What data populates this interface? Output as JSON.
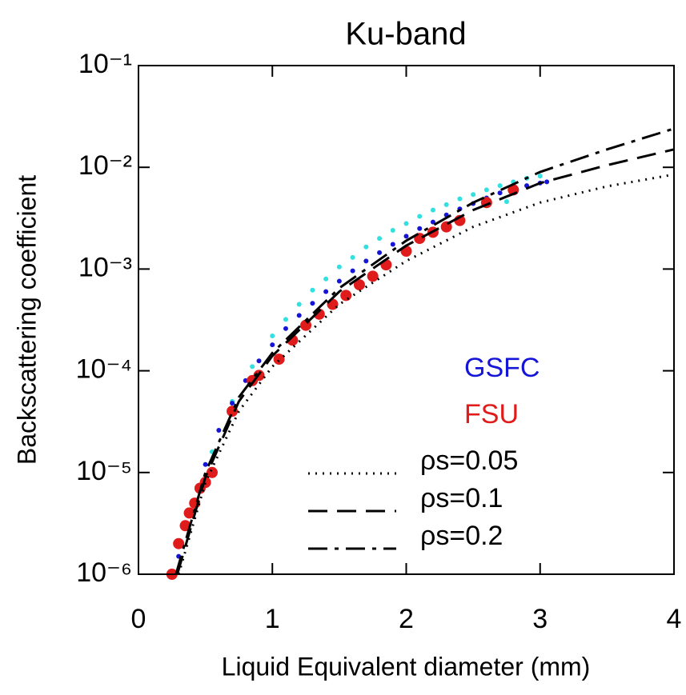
{
  "chart_data": {
    "type": "scatter",
    "title": "Ku-band",
    "x_label": "Liquid Equivalent diameter (mm)",
    "y_label": "Backscattering coefficient",
    "xlim": [
      0,
      4
    ],
    "xticks": [
      0,
      1,
      2,
      3,
      4
    ],
    "ylim": [
      1e-06,
      0.1
    ],
    "log_y": true,
    "yticks": [
      {
        "value": 1e-06,
        "label": "10⁻⁶"
      },
      {
        "value": 1e-05,
        "label": "10⁻⁵"
      },
      {
        "value": 0.0001,
        "label": "10⁻⁴"
      },
      {
        "value": 0.001,
        "label": "10⁻³"
      },
      {
        "value": 0.01,
        "label": "10⁻²"
      },
      {
        "value": 0.1,
        "label": "10⁻¹"
      }
    ],
    "series": [
      {
        "color": "#33e0e0",
        "mode": "points",
        "x": [
          0.3,
          0.4,
          0.55,
          0.7,
          0.85,
          1.0,
          1.1,
          1.2,
          1.3,
          1.4,
          1.5,
          1.6,
          1.7,
          1.8,
          1.9,
          2.0,
          2.1,
          2.2,
          2.3,
          2.4,
          2.5,
          2.6,
          2.7,
          2.8,
          2.9,
          3.0,
          2.6,
          2.75
        ],
        "values": [
          2e-06,
          5e-06,
          1.6e-05,
          5e-05,
          0.00011,
          0.00022,
          0.00032,
          0.00045,
          0.00062,
          0.0008,
          0.00105,
          0.0013,
          0.00165,
          0.002,
          0.0024,
          0.0028,
          0.0033,
          0.0038,
          0.0043,
          0.0049,
          0.0054,
          0.006,
          0.0066,
          0.0072,
          0.0078,
          0.0082,
          0.0042,
          0.0046
        ]
      },
      {
        "name": "GSFC",
        "color": "#1515d8",
        "mode": "points",
        "x": [
          0.3,
          0.4,
          0.5,
          0.6,
          0.7,
          0.8,
          0.9,
          1.0,
          1.1,
          1.2,
          1.3,
          1.4,
          1.5,
          1.6,
          1.7,
          1.8,
          1.9,
          2.0,
          2.1,
          2.2,
          2.3,
          2.4,
          2.5,
          2.6,
          2.7,
          2.8,
          2.9,
          3.0,
          3.05
        ],
        "values": [
          1.5e-06,
          5e-06,
          1.2e-05,
          2.6e-05,
          4.8e-05,
          8e-05,
          0.000125,
          0.00018,
          0.00026,
          0.00035,
          0.00046,
          0.0006,
          0.00076,
          0.00096,
          0.0012,
          0.00145,
          0.00175,
          0.0021,
          0.0025,
          0.0029,
          0.0034,
          0.0039,
          0.0044,
          0.005,
          0.0056,
          0.0061,
          0.0066,
          0.007,
          0.0072
        ]
      },
      {
        "name": "FSU",
        "color": "#e01b1b",
        "mode": "points",
        "x": [
          0.25,
          0.3,
          0.35,
          0.38,
          0.42,
          0.46,
          0.5,
          0.55,
          0.7,
          0.85,
          0.9,
          1.05,
          1.15,
          1.25,
          1.35,
          1.45,
          1.55,
          1.65,
          1.75,
          1.85,
          2.0,
          2.1,
          2.2,
          2.3,
          2.4,
          2.6,
          2.8
        ],
        "values": [
          1e-06,
          2e-06,
          3e-06,
          4e-06,
          5e-06,
          7e-06,
          8e-06,
          1e-05,
          4e-05,
          8e-05,
          9e-05,
          0.00013,
          0.0002,
          0.00028,
          0.00036,
          0.00045,
          0.00055,
          0.0007,
          0.00085,
          0.0011,
          0.0015,
          0.002,
          0.0023,
          0.0026,
          0.003,
          0.0045,
          0.006
        ]
      },
      {
        "name": "ρs=0.05",
        "color": "#000000",
        "mode": "line",
        "dash": "dotted",
        "x": [
          0.3,
          0.5,
          0.75,
          1.0,
          1.5,
          2.0,
          2.5,
          3.0,
          3.5,
          4.0
        ],
        "values": [
          1e-06,
          8e-06,
          4e-05,
          0.00011,
          0.00045,
          0.0012,
          0.0026,
          0.0045,
          0.0065,
          0.0085
        ]
      },
      {
        "name": "ρs=0.1",
        "color": "#000000",
        "mode": "line",
        "dash": "dashed",
        "x": [
          0.29,
          0.5,
          0.75,
          1.0,
          1.5,
          2.0,
          2.5,
          3.0,
          3.5,
          4.0
        ],
        "values": [
          1e-06,
          9e-06,
          5e-05,
          0.00014,
          0.0006,
          0.0017,
          0.0038,
          0.007,
          0.0105,
          0.015
        ]
      },
      {
        "name": "ρs=0.2",
        "color": "#000000",
        "mode": "line",
        "dash": "dashdot",
        "x": [
          0.28,
          0.5,
          0.75,
          1.0,
          1.5,
          2.0,
          2.5,
          3.0,
          3.5,
          4.0
        ],
        "values": [
          1e-06,
          1e-05,
          5.5e-05,
          0.00015,
          0.00065,
          0.0019,
          0.0045,
          0.009,
          0.015,
          0.024
        ]
      }
    ]
  }
}
